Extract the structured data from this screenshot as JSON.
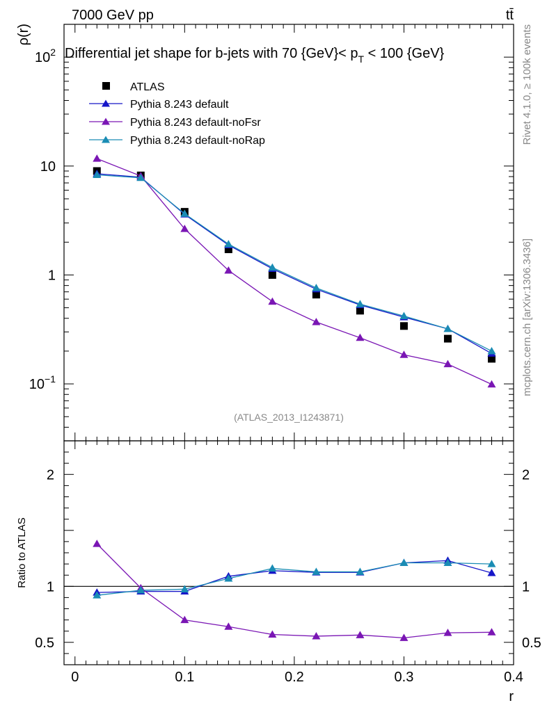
{
  "header": {
    "energy_label": "7000 GeV pp",
    "process_label": "tt̄"
  },
  "side_texts": {
    "rivet": "Rivet 4.1.0, ≥ 100k events",
    "mcplots": "mcplots.cern.ch [arXiv:1306.3436]"
  },
  "chart_data": {
    "type": "scatter",
    "title_prefix": "Differential jet shape for b-jets with 70 {GeV}< p",
    "title_sub": "T",
    "title_suffix": " < 100 {GeV}",
    "xlabel": "r",
    "ylabel": "ρ(r)",
    "ratio_ylabel": "Ratio to ATLAS",
    "analysis_id": "(ATLAS_2013_I1243871)",
    "xlim": [
      -0.01,
      0.4
    ],
    "ylim": [
      0.03,
      200
    ],
    "yscale": "log",
    "ratio_ylim": [
      0.3,
      2.3
    ],
    "x_ticks": [
      {
        "value": 0,
        "label": "0"
      },
      {
        "value": 0.1,
        "label": "0.1"
      },
      {
        "value": 0.2,
        "label": "0.2"
      },
      {
        "value": 0.3,
        "label": "0.3"
      },
      {
        "value": 0.4,
        "label": "0.4"
      }
    ],
    "y_ticks": [
      {
        "value": 0.1,
        "base": "10",
        "exp": "−1"
      },
      {
        "value": 1,
        "base": "1",
        "exp": ""
      },
      {
        "value": 10,
        "base": "10",
        "exp": ""
      },
      {
        "value": 100,
        "base": "10",
        "exp": "2"
      }
    ],
    "ratio_ticks": [
      {
        "value": 0.5,
        "label": "0.5"
      },
      {
        "value": 1,
        "label": "1"
      },
      {
        "value": 2,
        "label": "2"
      }
    ],
    "x": [
      0.02,
      0.06,
      0.1,
      0.14,
      0.18,
      0.22,
      0.26,
      0.3,
      0.34,
      0.38
    ],
    "data": {
      "name": "ATLAS",
      "color": "#000000",
      "values": [
        9.0,
        8.2,
        3.8,
        1.72,
        1.0,
        0.66,
        0.47,
        0.34,
        0.26,
        0.17
      ]
    },
    "series": [
      {
        "name": "Pythia 8.243 default",
        "color": "#1616c8",
        "values": [
          8.5,
          7.9,
          3.6,
          1.88,
          1.14,
          0.74,
          0.53,
          0.41,
          0.32,
          0.19
        ],
        "ratio": [
          0.945,
          0.955,
          0.955,
          1.09,
          1.14,
          1.125,
          1.125,
          1.21,
          1.23,
          1.12
        ]
      },
      {
        "name": "Pythia 8.243 default-noFsr",
        "color": "#7a16b4",
        "values": [
          11.7,
          8.1,
          2.65,
          1.1,
          0.57,
          0.37,
          0.265,
          0.185,
          0.152,
          0.099
        ],
        "ratio": [
          1.38,
          0.985,
          0.7,
          0.64,
          0.57,
          0.555,
          0.565,
          0.54,
          0.585,
          0.59
        ]
      },
      {
        "name": "Pythia 8.243 default-noRap",
        "color": "#1a8cb4",
        "values": [
          8.3,
          7.8,
          3.65,
          1.92,
          1.17,
          0.76,
          0.54,
          0.42,
          0.32,
          0.2
        ],
        "ratio": [
          0.92,
          0.965,
          0.975,
          1.07,
          1.16,
          1.13,
          1.13,
          1.21,
          1.21,
          1.2
        ]
      }
    ]
  }
}
